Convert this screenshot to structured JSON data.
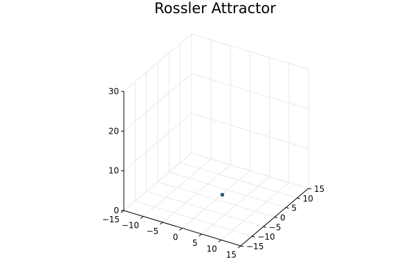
{
  "chart_data": {
    "type": "scatter",
    "title": "Rossler Attractor",
    "xlabel": "",
    "ylabel": "",
    "zlabel": "",
    "xlim": [
      -15,
      15
    ],
    "ylim": [
      -15,
      15
    ],
    "zlim": [
      0,
      30
    ],
    "x_ticks": [
      -15,
      -10,
      -5,
      0,
      5,
      10,
      15
    ],
    "y_ticks": [
      -15,
      -10,
      -5,
      0,
      5,
      10,
      15
    ],
    "z_ticks": [
      0,
      10,
      20,
      30
    ],
    "x_tick_labels": [
      "−15",
      "−10",
      "−5",
      "0",
      "5",
      "10",
      "15"
    ],
    "y_tick_labels": [
      "−15",
      "−10",
      "−5",
      "0",
      "5",
      "10",
      "15"
    ],
    "z_tick_labels": [
      "0",
      "10",
      "20",
      "30"
    ],
    "grid": true,
    "legend": "none",
    "marker_color": "#1f77b4",
    "points": [
      {
        "x": 1,
        "y": 1,
        "z": 1
      }
    ]
  }
}
